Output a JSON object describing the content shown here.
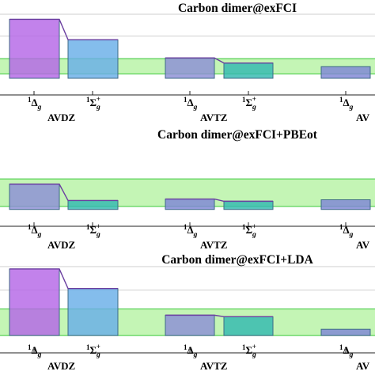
{
  "colors": {
    "band_fill": "#c4f5b5",
    "band_edge": "#3cc93c",
    "gridline": "#cfcfcf",
    "axis": "#222222",
    "bar_edge": "#3d6a86",
    "connector": "#6b3fa0"
  },
  "chart_data": [
    {
      "type": "bar",
      "title": "Carbon dimer@exFCI",
      "ylim": [
        0,
        1
      ],
      "band": [
        0.18,
        0.39
      ],
      "grid_y": [
        0.39,
        0.7,
        1.0
      ],
      "bars": [
        {
          "x": "1Δg",
          "basis": "AVDZ",
          "value": 0.93,
          "color": "#b467e6"
        },
        {
          "x": "1Σg+",
          "basis": "AVDZ",
          "value": 0.65,
          "color": "#69aee8"
        },
        {
          "x": "1Δg",
          "basis": "AVTZ",
          "value": 0.4,
          "color": "#8c8fd6"
        },
        {
          "x": "1Σg+",
          "basis": "AVTZ",
          "value": 0.33,
          "color": "#33b9b0"
        },
        {
          "x": "1Δg",
          "basis": "AVQZ",
          "value": 0.28,
          "color": "#7f86d5"
        }
      ]
    },
    {
      "type": "bar",
      "title": "Carbon dimer@exFCI+PBEot",
      "ylim": [
        0,
        1
      ],
      "band": [
        0.16,
        0.53
      ],
      "grid_y": [],
      "bars": [
        {
          "x": "1Δg",
          "basis": "AVDZ",
          "value": 0.46,
          "color": "#8c8fd6"
        },
        {
          "x": "1Σg+",
          "basis": "AVDZ",
          "value": 0.24,
          "color": "#33b9b0"
        },
        {
          "x": "1Δg",
          "basis": "AVTZ",
          "value": 0.26,
          "color": "#7f86d5"
        },
        {
          "x": "1Σg+",
          "basis": "AVTZ",
          "value": 0.23,
          "color": "#33b9b0"
        },
        {
          "x": "1Δg",
          "basis": "AVQZ",
          "value": 0.25,
          "color": "#7f86d5"
        }
      ]
    },
    {
      "type": "bar",
      "title": "Carbon dimer@exFCI+LDA",
      "ylim": [
        0,
        1
      ],
      "band": [
        0.12,
        0.46
      ],
      "grid_y": [
        0.46,
        0.7,
        1.0
      ],
      "bars": [
        {
          "x": "1Δg",
          "basis": "AVDZ",
          "value": 0.97,
          "color": "#b467e6"
        },
        {
          "x": "1Σg+",
          "basis": "AVDZ",
          "value": 0.72,
          "color": "#69aee8"
        },
        {
          "x": "1Δg",
          "basis": "AVTZ",
          "value": 0.38,
          "color": "#8c8fd6"
        },
        {
          "x": "1Σg+",
          "basis": "AVTZ",
          "value": 0.36,
          "color": "#33b9b0"
        },
        {
          "x": "1Δg",
          "basis": "AVQZ",
          "value": 0.2,
          "color": "#7f86d5"
        }
      ]
    }
  ]
}
